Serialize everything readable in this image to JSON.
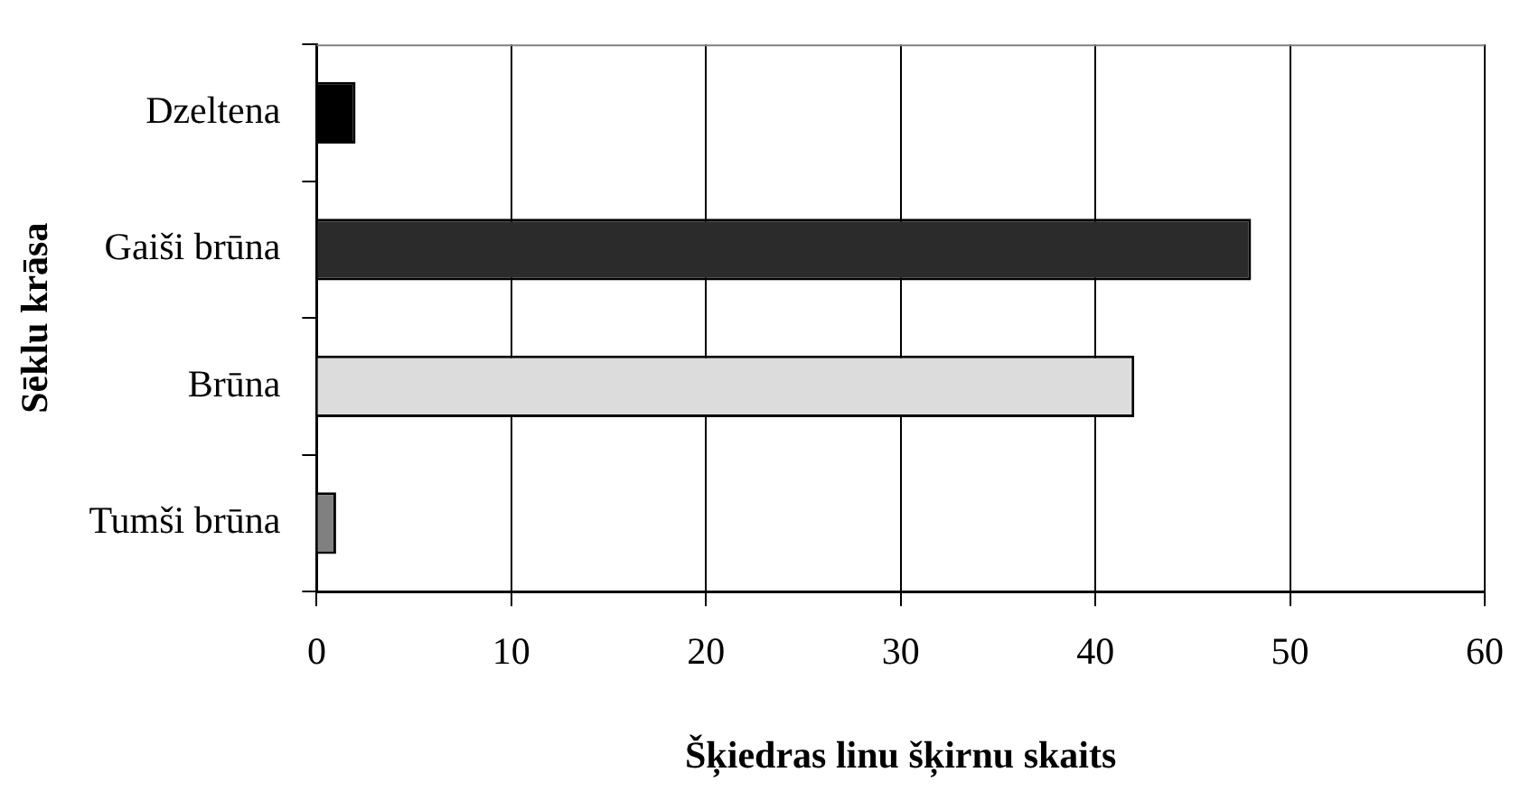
{
  "chart_data": {
    "type": "bar",
    "orientation": "horizontal",
    "xlabel": "Šķiedras linu šķirnu skaits",
    "ylabel": "Sēklu krāsa",
    "categories": [
      "Dzeltena",
      "Gaiši brūna",
      "Brūna",
      "Tumši brūna"
    ],
    "values": [
      2,
      48,
      42,
      1
    ],
    "colors": [
      "#000000",
      "#2b2b2b",
      "#dcdcdc",
      "#808080"
    ],
    "xlim": [
      0,
      60
    ],
    "xticks": [
      0,
      10,
      20,
      30,
      40,
      50,
      60
    ],
    "grid": "x",
    "legend": false
  }
}
